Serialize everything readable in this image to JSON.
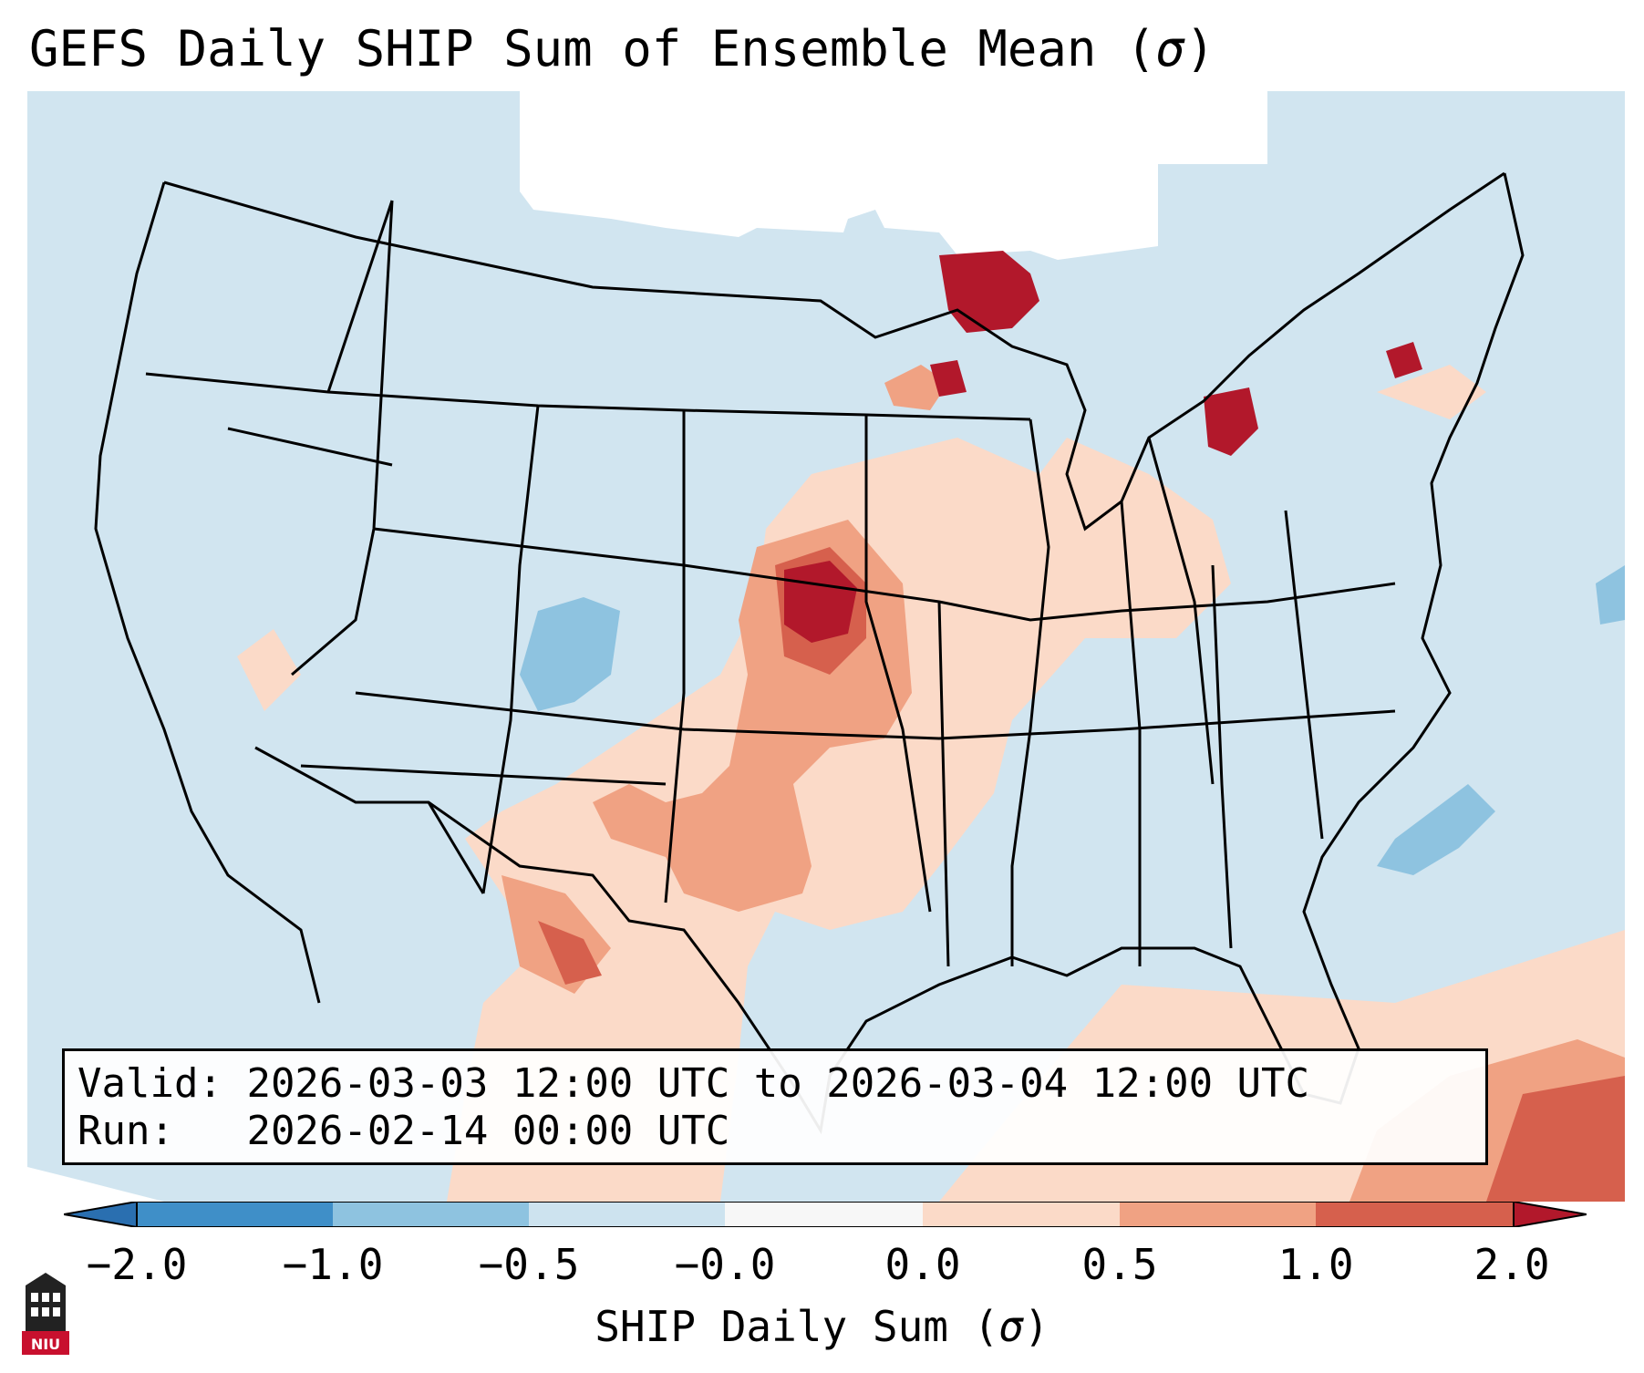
{
  "title": {
    "text": "GEFS Daily SHIP Sum of Ensemble Mean (",
    "symbol": "σ",
    "close": ")"
  },
  "info": {
    "valid_label": "Valid:",
    "valid_value": "2026-03-03 12:00 UTC to 2026-03-04 12:00 UTC",
    "run_label": "Run:",
    "run_value": "2026-02-14 00:00 UTC"
  },
  "colorbar": {
    "ticks": [
      "−2.0",
      "−1.0",
      "−0.5",
      "−0.0",
      "0.0",
      "0.5",
      "1.0",
      "2.0"
    ],
    "colors": [
      "#3f8fc8",
      "#8ec3e0",
      "#cde3ef",
      "#fbdac8",
      "#f0a283",
      "#d6604d"
    ],
    "extend_low": "#2a6fb0",
    "extend_high": "#b2182b",
    "label_text": "SHIP Daily Sum (",
    "label_symbol": "σ",
    "label_close": ")"
  },
  "map": {
    "background_color": "#d1e5f0",
    "nodata_color": "#ffffff",
    "region": "Contiguous United States"
  },
  "logo": {
    "text": "NIU",
    "icon": "niu-tower-icon"
  }
}
